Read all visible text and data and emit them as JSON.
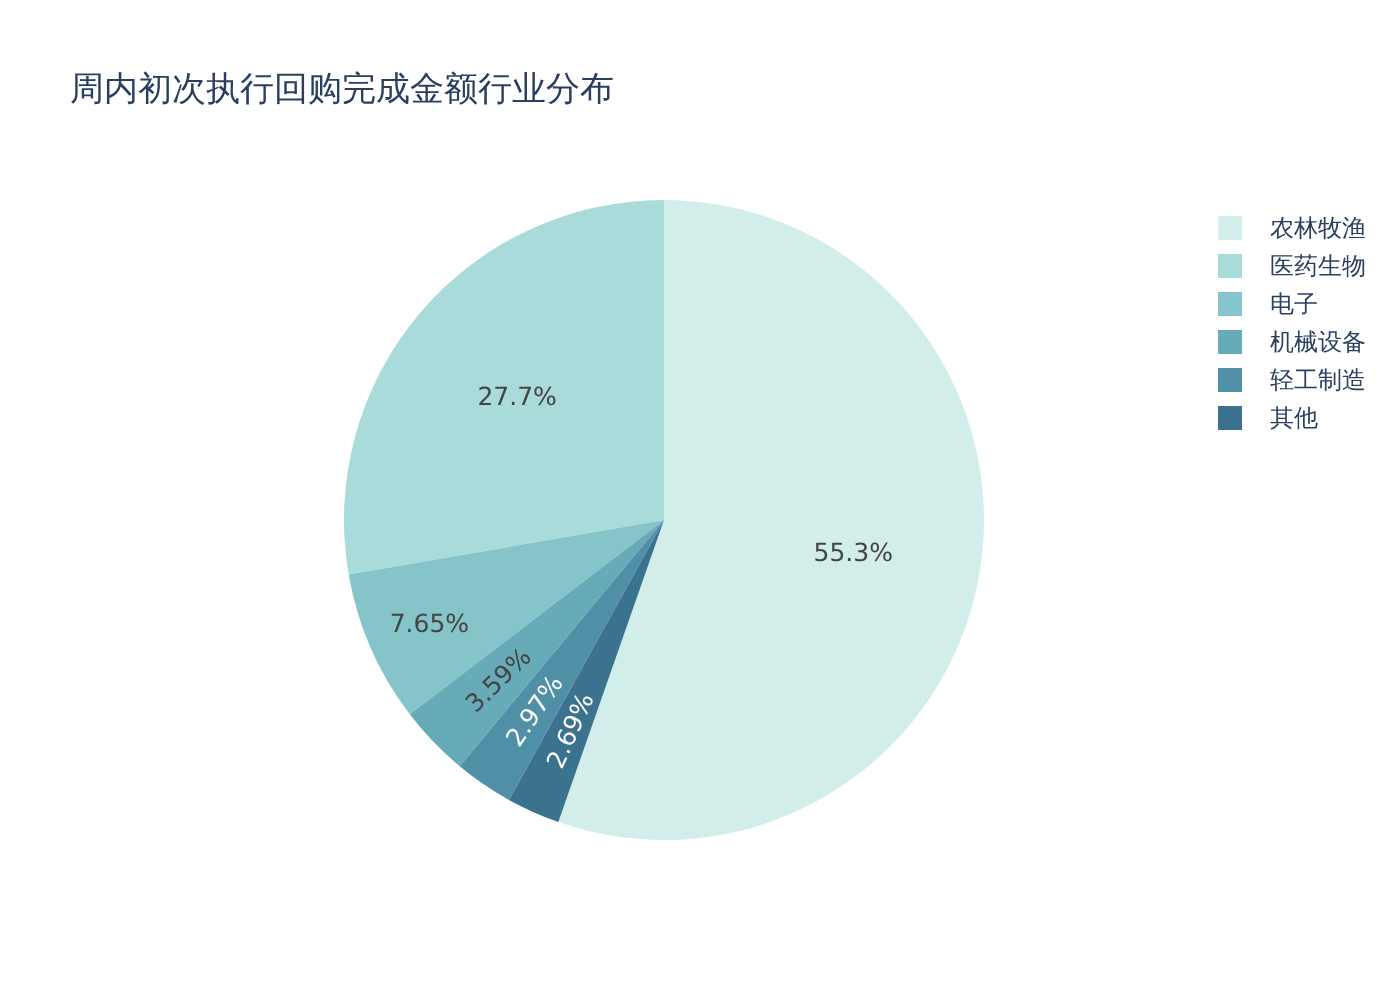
{
  "chart_data": {
    "type": "pie",
    "title": "周内初次执行回购完成金额行业分布",
    "categories": [
      "农林牧渔",
      "医药生物",
      "电子",
      "机械设备",
      "轻工制造",
      "其他"
    ],
    "values": [
      55.3,
      27.7,
      7.65,
      3.59,
      2.97,
      2.69
    ],
    "colors": [
      "#d1eeea",
      "#a8dbd9",
      "#85c4c9",
      "#68abb8",
      "#4f90a6",
      "#3b738f"
    ],
    "value_labels": [
      "55.3%",
      "27.7%",
      "7.65%",
      "3.59%",
      "2.97%",
      "2.69%"
    ],
    "legend": "top right"
  }
}
